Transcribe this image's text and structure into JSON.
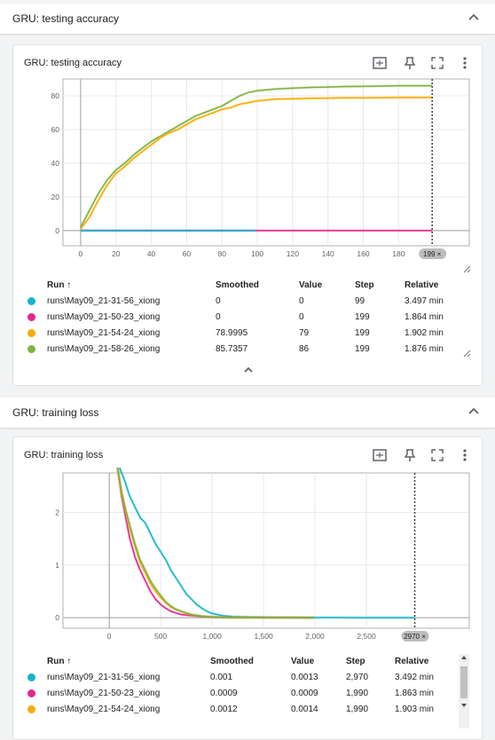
{
  "panels": [
    {
      "section_title": "GRU: testing accuracy",
      "card_title": "GRU: testing accuracy",
      "chart_data": {
        "type": "line",
        "title": "",
        "xlabel": "",
        "ylabel": "",
        "x_ticks": [
          "0",
          "20",
          "40",
          "60",
          "80",
          "100",
          "120",
          "140",
          "160",
          "180"
        ],
        "y_ticks": [
          "0",
          "20",
          "40",
          "60",
          "80"
        ],
        "xlim": [
          -10,
          220
        ],
        "ylim": [
          -9,
          90
        ],
        "cursor_label": "199 ×",
        "series": [
          {
            "name": "runs\\May09_21-58-26_xiong",
            "color": "#7cb342",
            "x": [
              0,
              5,
              10,
              15,
              20,
              25,
              30,
              35,
              40,
              45,
              50,
              55,
              60,
              65,
              70,
              75,
              80,
              85,
              90,
              95,
              100,
              110,
              120,
              130,
              140,
              150,
              160,
              170,
              180,
              190,
              199
            ],
            "y": [
              2,
              12,
              22,
              30,
              36,
              40,
              45,
              49,
              53,
              56,
              59,
              62,
              65,
              68,
              70,
              72,
              74,
              77,
              80,
              82,
              83,
              84,
              84.5,
              85,
              85.2,
              85.5,
              85.6,
              85.8,
              86,
              86,
              86
            ]
          },
          {
            "name": "runs\\May09_21-54-24_xiong",
            "color": "#f9ab00",
            "x": [
              0,
              5,
              10,
              15,
              20,
              25,
              30,
              35,
              40,
              45,
              50,
              55,
              60,
              65,
              70,
              75,
              80,
              85,
              90,
              95,
              100,
              110,
              120,
              130,
              140,
              150,
              160,
              170,
              180,
              190,
              199
            ],
            "y": [
              1,
              8,
              18,
              27,
              34,
              38,
              43,
              47,
              51,
              55,
              58,
              60,
              63,
              66,
              68,
              70,
              72,
              73,
              75,
              76,
              77,
              78,
              78.2,
              78.5,
              78.6,
              78.8,
              78.8,
              78.9,
              79,
              79,
              79
            ]
          },
          {
            "name": "runs\\May09_21-50-23_xiong",
            "color": "#e52592",
            "x": [
              0,
              199
            ],
            "y": [
              0,
              0
            ]
          },
          {
            "name": "runs\\May09_21-31-56_xiong",
            "color": "#12b5cb",
            "x": [
              0,
              99
            ],
            "y": [
              0,
              0
            ]
          }
        ]
      },
      "table": {
        "headers": {
          "run": "Run ↑",
          "smoothed": "Smoothed",
          "value": "Value",
          "step": "Step",
          "relative": "Relative"
        },
        "rows": [
          {
            "color": "#12b5cb",
            "run": "runs\\May09_21-31-56_xiong",
            "smoothed": "0",
            "value": "0",
            "step": "99",
            "relative": "3.497 min"
          },
          {
            "color": "#e52592",
            "run": "runs\\May09_21-50-23_xiong",
            "smoothed": "0",
            "value": "0",
            "step": "199",
            "relative": "1.864 min"
          },
          {
            "color": "#f9ab00",
            "run": "runs\\May09_21-54-24_xiong",
            "smoothed": "78.9995",
            "value": "79",
            "step": "199",
            "relative": "1.902 min"
          },
          {
            "color": "#7cb342",
            "run": "runs\\May09_21-58-26_xiong",
            "smoothed": "85.7357",
            "value": "86",
            "step": "199",
            "relative": "1.876 min"
          }
        ]
      }
    },
    {
      "section_title": "GRU: training loss",
      "card_title": "GRU: training loss",
      "chart_data": {
        "type": "line",
        "title": "",
        "xlabel": "",
        "ylabel": "",
        "x_ticks": [
          "0",
          "500",
          "1,000",
          "1,500",
          "2,000",
          "2,500"
        ],
        "x_tick_values": [
          0,
          500,
          1000,
          1500,
          2000,
          2500
        ],
        "y_ticks": [
          "0",
          "1",
          "2"
        ],
        "xlim": [
          -450,
          3500
        ],
        "ylim": [
          -0.2,
          2.75
        ],
        "cursor_label": "2970 ×",
        "series": [
          {
            "name": "runs\\May09_21-31-56_xiong",
            "color": "#12b5cb",
            "x": [
              100,
              150,
              200,
              250,
              300,
              350,
              400,
              450,
              500,
              550,
              600,
              650,
              700,
              750,
              800,
              850,
              900,
              950,
              1000,
              1100,
              1200,
              1400,
              1600,
              2000,
              2500,
              2970
            ],
            "y": [
              2.85,
              2.6,
              2.3,
              2.1,
              1.9,
              1.8,
              1.6,
              1.4,
              1.25,
              1.1,
              0.9,
              0.75,
              0.6,
              0.45,
              0.35,
              0.25,
              0.18,
              0.12,
              0.08,
              0.04,
              0.02,
              0.01,
              0.005,
              0.002,
              0.001,
              0.001
            ]
          },
          {
            "name": "runs\\May09_21-50-23_xiong",
            "color": "#e52592",
            "x": [
              80,
              120,
              160,
              200,
              250,
              300,
              350,
              400,
              450,
              500,
              550,
              600,
              650,
              700,
              750,
              800,
              850,
              900,
              1000,
              1100,
              1200,
              1500,
              1990
            ],
            "y": [
              2.85,
              2.3,
              1.9,
              1.5,
              1.15,
              0.9,
              0.7,
              0.5,
              0.35,
              0.25,
              0.18,
              0.12,
              0.09,
              0.06,
              0.05,
              0.04,
              0.03,
              0.02,
              0.01,
              0.005,
              0.003,
              0.002,
              0.0009
            ]
          },
          {
            "name": "runs\\May09_21-54-24_xiong",
            "color": "#f9ab00",
            "x": [
              80,
              120,
              160,
              200,
              250,
              300,
              350,
              400,
              450,
              500,
              550,
              600,
              650,
              700,
              750,
              800,
              850,
              900,
              1000,
              1100,
              1200,
              1500,
              1990
            ],
            "y": [
              2.85,
              2.35,
              2.0,
              1.7,
              1.35,
              1.05,
              0.85,
              0.65,
              0.5,
              0.38,
              0.28,
              0.2,
              0.15,
              0.12,
              0.08,
              0.06,
              0.04,
              0.03,
              0.015,
              0.008,
              0.004,
              0.002,
              0.0012
            ]
          },
          {
            "name": "runs\\May09_21-58-26_xiong",
            "color": "#7cb342",
            "x": [
              80,
              120,
              160,
              200,
              250,
              300,
              350,
              400,
              450,
              500,
              550,
              600,
              650,
              700,
              750,
              800,
              850,
              900,
              1000,
              1100,
              1200,
              1500,
              1990
            ],
            "y": [
              2.85,
              2.4,
              2.05,
              1.75,
              1.4,
              1.1,
              0.9,
              0.7,
              0.55,
              0.42,
              0.3,
              0.22,
              0.16,
              0.12,
              0.09,
              0.06,
              0.045,
              0.03,
              0.015,
              0.008,
              0.004,
              0.002,
              0.001
            ]
          }
        ]
      },
      "table": {
        "headers": {
          "run": "Run ↑",
          "smoothed": "Smoothed",
          "value": "Value",
          "step": "Step",
          "relative": "Relative"
        },
        "rows": [
          {
            "color": "#12b5cb",
            "run": "runs\\May09_21-31-56_xiong",
            "smoothed": "0.001",
            "value": "0.0013",
            "step": "2,970",
            "relative": "3.492 min"
          },
          {
            "color": "#e52592",
            "run": "runs\\May09_21-50-23_xiong",
            "smoothed": "0.0009",
            "value": "0.0009",
            "step": "1,990",
            "relative": "1.863 min"
          },
          {
            "color": "#f9ab00",
            "run": "runs\\May09_21-54-24_xiong",
            "smoothed": "0.0012",
            "value": "0.0014",
            "step": "1,990",
            "relative": "1.903 min"
          }
        ]
      }
    }
  ],
  "icons": {
    "fit": "fit-domain-icon",
    "pin": "pin-icon",
    "fullscreen": "fullscreen-icon",
    "more": "more-vert-icon",
    "collapse": "chevron-up-icon"
  }
}
